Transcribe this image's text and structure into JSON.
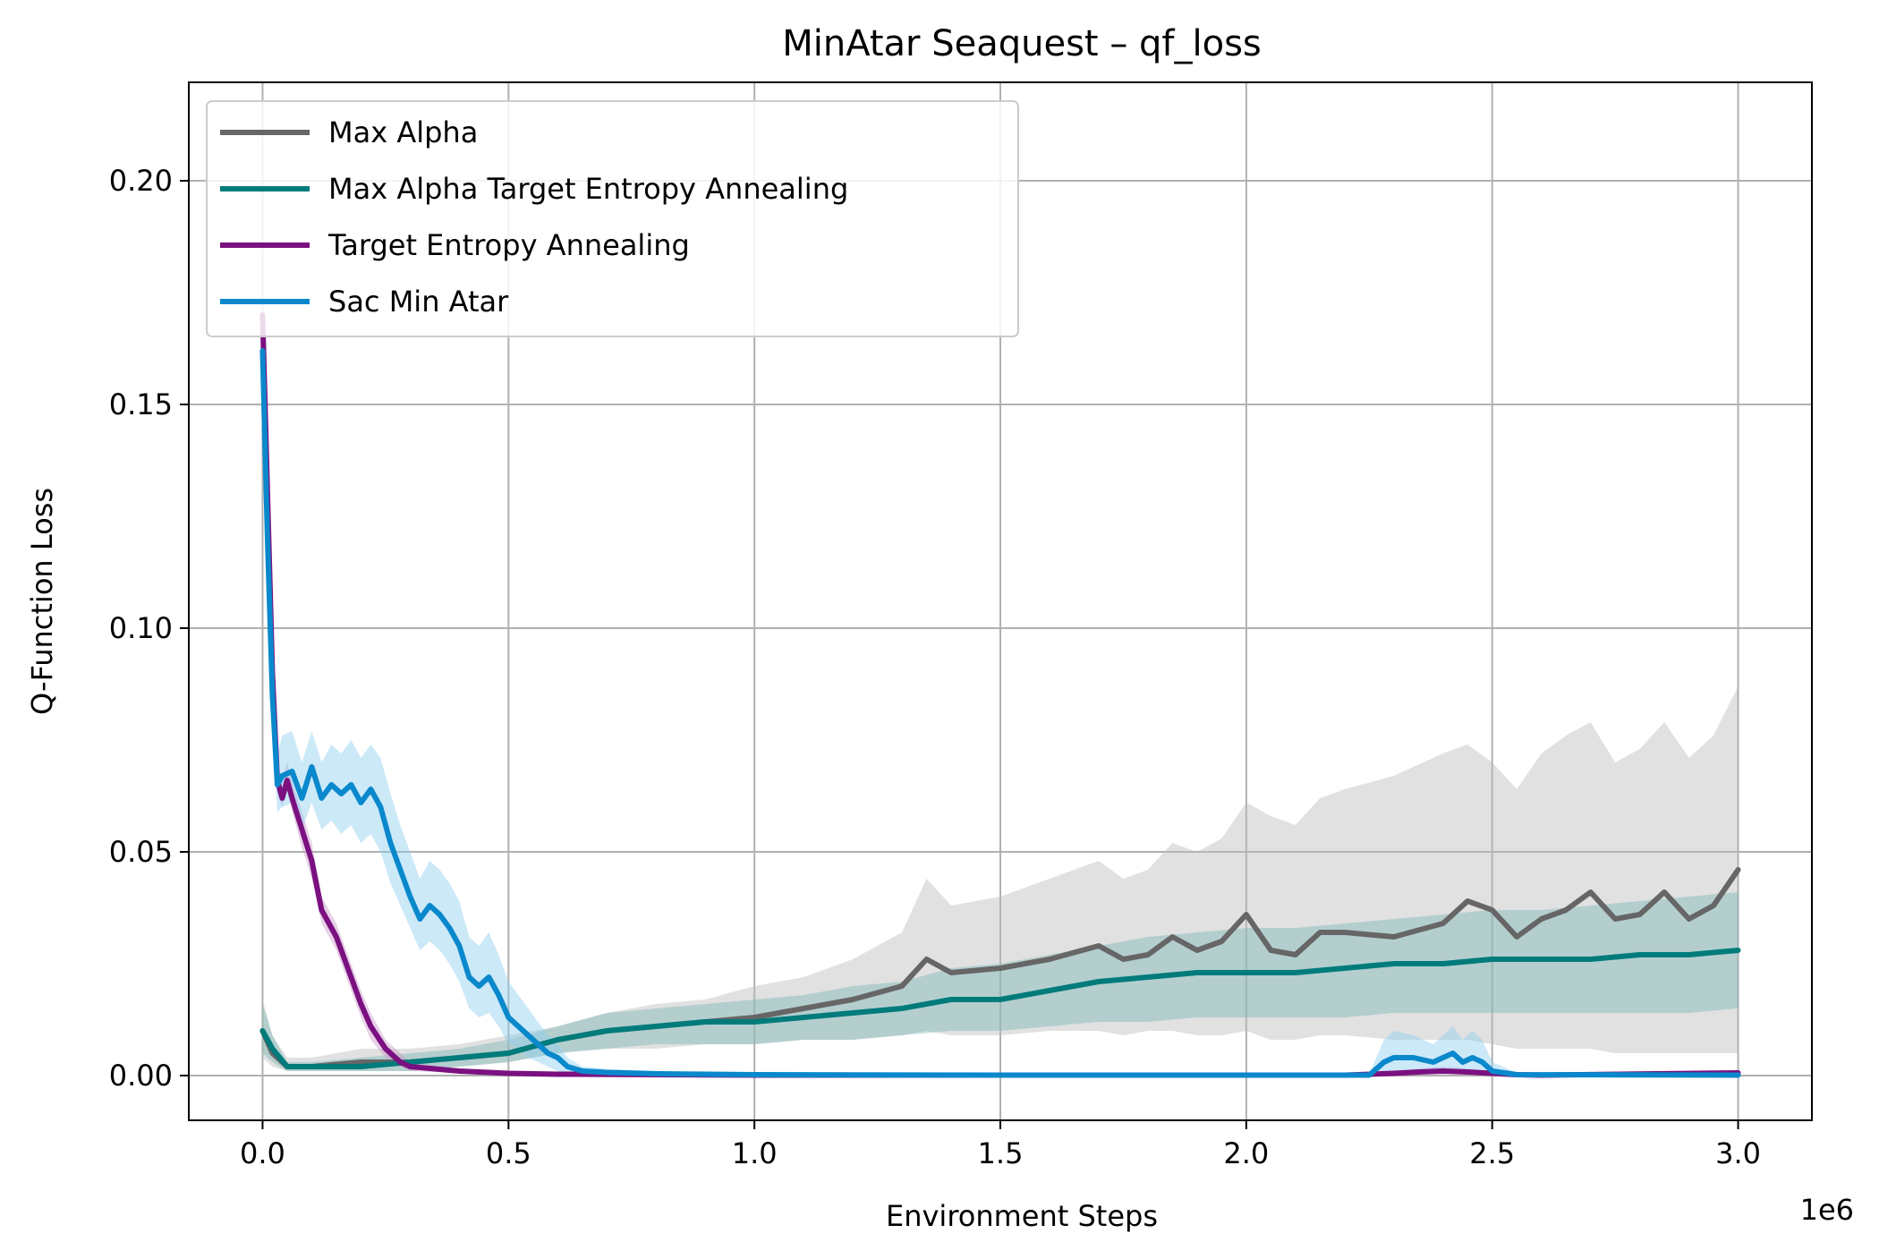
{
  "chart_data": {
    "type": "line",
    "title": "MinAtar Seaquest – qf_loss",
    "xlabel": "Environment Steps",
    "ylabel": "Q-Function Loss",
    "x_multiplier_label": "1e6",
    "xlim": [
      -0.15,
      3.15
    ],
    "ylim": [
      -0.01,
      0.222
    ],
    "x_ticks": [
      0.0,
      0.5,
      1.0,
      1.5,
      2.0,
      2.5,
      3.0
    ],
    "x_tick_labels": [
      "0.0",
      "0.5",
      "1.0",
      "1.5",
      "2.0",
      "2.5",
      "3.0"
    ],
    "y_ticks": [
      0.0,
      0.05,
      0.1,
      0.15,
      0.2
    ],
    "y_tick_labels": [
      "0.00",
      "0.05",
      "0.10",
      "0.15",
      "0.20"
    ],
    "grid": true,
    "legend_position": "top-left",
    "series": [
      {
        "name": "Max Alpha",
        "color": "#666666",
        "band_color": "#bdbdbd",
        "x": [
          0.0,
          0.02,
          0.05,
          0.1,
          0.2,
          0.3,
          0.4,
          0.5,
          0.6,
          0.7,
          0.8,
          0.9,
          1.0,
          1.1,
          1.2,
          1.3,
          1.35,
          1.4,
          1.5,
          1.6,
          1.7,
          1.75,
          1.8,
          1.85,
          1.9,
          1.95,
          2.0,
          2.05,
          2.1,
          2.15,
          2.2,
          2.3,
          2.4,
          2.45,
          2.5,
          2.55,
          2.6,
          2.65,
          2.7,
          2.75,
          2.8,
          2.85,
          2.9,
          2.95,
          3.0
        ],
        "values": [
          0.01,
          0.005,
          0.002,
          0.002,
          0.003,
          0.003,
          0.004,
          0.005,
          0.008,
          0.01,
          0.011,
          0.012,
          0.013,
          0.015,
          0.017,
          0.02,
          0.026,
          0.023,
          0.024,
          0.026,
          0.029,
          0.026,
          0.027,
          0.031,
          0.028,
          0.03,
          0.036,
          0.028,
          0.027,
          0.032,
          0.032,
          0.031,
          0.034,
          0.039,
          0.037,
          0.031,
          0.035,
          0.037,
          0.041,
          0.035,
          0.036,
          0.041,
          0.035,
          0.038,
          0.046
        ],
        "lower": [
          0.004,
          0.002,
          0.001,
          0.001,
          0.001,
          0.001,
          0.002,
          0.003,
          0.005,
          0.006,
          0.006,
          0.007,
          0.007,
          0.008,
          0.008,
          0.009,
          0.01,
          0.009,
          0.009,
          0.01,
          0.01,
          0.009,
          0.01,
          0.01,
          0.009,
          0.009,
          0.01,
          0.008,
          0.008,
          0.009,
          0.009,
          0.008,
          0.008,
          0.008,
          0.007,
          0.006,
          0.006,
          0.006,
          0.006,
          0.005,
          0.005,
          0.005,
          0.005,
          0.005,
          0.005
        ],
        "upper": [
          0.017,
          0.009,
          0.004,
          0.004,
          0.006,
          0.006,
          0.007,
          0.009,
          0.011,
          0.014,
          0.016,
          0.017,
          0.02,
          0.022,
          0.026,
          0.032,
          0.044,
          0.038,
          0.04,
          0.044,
          0.048,
          0.044,
          0.046,
          0.052,
          0.05,
          0.053,
          0.061,
          0.058,
          0.056,
          0.062,
          0.064,
          0.067,
          0.072,
          0.074,
          0.07,
          0.064,
          0.072,
          0.076,
          0.079,
          0.07,
          0.073,
          0.079,
          0.071,
          0.076,
          0.087
        ]
      },
      {
        "name": "Max Alpha Target Entropy Annealing",
        "color": "#007b7b",
        "band_color": "#7fb8b8",
        "x": [
          0.0,
          0.02,
          0.05,
          0.1,
          0.2,
          0.3,
          0.4,
          0.5,
          0.6,
          0.7,
          0.8,
          0.9,
          1.0,
          1.1,
          1.2,
          1.3,
          1.4,
          1.5,
          1.6,
          1.7,
          1.8,
          1.9,
          2.0,
          2.1,
          2.2,
          2.3,
          2.4,
          2.5,
          2.6,
          2.7,
          2.8,
          2.9,
          3.0
        ],
        "values": [
          0.01,
          0.006,
          0.002,
          0.002,
          0.002,
          0.003,
          0.004,
          0.005,
          0.008,
          0.01,
          0.011,
          0.012,
          0.012,
          0.013,
          0.014,
          0.015,
          0.017,
          0.017,
          0.019,
          0.021,
          0.022,
          0.023,
          0.023,
          0.023,
          0.024,
          0.025,
          0.025,
          0.026,
          0.026,
          0.026,
          0.027,
          0.027,
          0.028
        ],
        "lower": [
          0.005,
          0.003,
          0.001,
          0.001,
          0.001,
          0.001,
          0.002,
          0.003,
          0.005,
          0.006,
          0.007,
          0.007,
          0.007,
          0.008,
          0.008,
          0.009,
          0.01,
          0.01,
          0.011,
          0.012,
          0.012,
          0.013,
          0.013,
          0.013,
          0.013,
          0.014,
          0.014,
          0.014,
          0.014,
          0.014,
          0.014,
          0.014,
          0.015
        ],
        "upper": [
          0.016,
          0.009,
          0.003,
          0.003,
          0.004,
          0.005,
          0.006,
          0.008,
          0.011,
          0.014,
          0.015,
          0.016,
          0.017,
          0.018,
          0.02,
          0.021,
          0.024,
          0.025,
          0.027,
          0.029,
          0.031,
          0.032,
          0.033,
          0.033,
          0.034,
          0.035,
          0.036,
          0.037,
          0.037,
          0.038,
          0.039,
          0.04,
          0.041
        ]
      },
      {
        "name": "Target Entropy Annealing",
        "color": "#7b1080",
        "band_color": "#c99ac9",
        "x": [
          0.0,
          0.01,
          0.02,
          0.03,
          0.04,
          0.05,
          0.06,
          0.08,
          0.1,
          0.12,
          0.15,
          0.18,
          0.2,
          0.22,
          0.25,
          0.28,
          0.3,
          0.35,
          0.4,
          0.5,
          0.6,
          0.8,
          1.0,
          1.5,
          2.0,
          2.2,
          2.3,
          2.35,
          2.4,
          2.45,
          2.5,
          2.55,
          2.6,
          3.0
        ],
        "values": [
          0.17,
          0.13,
          0.09,
          0.066,
          0.062,
          0.066,
          0.062,
          0.055,
          0.048,
          0.037,
          0.031,
          0.022,
          0.016,
          0.011,
          0.006,
          0.003,
          0.002,
          0.0015,
          0.001,
          0.0005,
          0.0003,
          0.0002,
          0.0001,
          0.0001,
          0.0001,
          0.0001,
          0.0005,
          0.0008,
          0.001,
          0.0008,
          0.0005,
          0.0002,
          0.0001,
          0.0006
        ],
        "lower": [
          0.16,
          0.12,
          0.085,
          0.063,
          0.06,
          0.064,
          0.059,
          0.051,
          0.044,
          0.034,
          0.028,
          0.019,
          0.013,
          0.008,
          0.004,
          0.002,
          0.001,
          0.0008,
          0.0005,
          0.0002,
          0.0001,
          0.0,
          0.0,
          0.0,
          0.0,
          0.0,
          0.0002,
          0.0003,
          0.0004,
          0.0003,
          0.0002,
          0.0,
          0.0,
          0.0002
        ],
        "upper": [
          0.175,
          0.14,
          0.095,
          0.07,
          0.066,
          0.07,
          0.066,
          0.059,
          0.052,
          0.04,
          0.034,
          0.025,
          0.019,
          0.014,
          0.008,
          0.005,
          0.003,
          0.0022,
          0.0015,
          0.0008,
          0.0005,
          0.0003,
          0.0002,
          0.0002,
          0.0002,
          0.0002,
          0.001,
          0.0015,
          0.002,
          0.0015,
          0.001,
          0.0004,
          0.0002,
          0.001
        ]
      },
      {
        "name": "Sac Min Atar",
        "color": "#0a88cc",
        "band_color": "#8ecfef",
        "x": [
          0.0,
          0.01,
          0.02,
          0.03,
          0.04,
          0.06,
          0.08,
          0.1,
          0.12,
          0.14,
          0.16,
          0.18,
          0.2,
          0.22,
          0.24,
          0.26,
          0.28,
          0.3,
          0.32,
          0.34,
          0.36,
          0.38,
          0.4,
          0.42,
          0.44,
          0.46,
          0.48,
          0.5,
          0.52,
          0.54,
          0.56,
          0.58,
          0.6,
          0.62,
          0.65,
          0.7,
          0.8,
          1.0,
          1.5,
          2.0,
          2.25,
          2.28,
          2.3,
          2.34,
          2.38,
          2.42,
          2.44,
          2.46,
          2.48,
          2.5,
          2.55,
          3.0
        ],
        "values": [
          0.162,
          0.12,
          0.085,
          0.065,
          0.067,
          0.068,
          0.062,
          0.069,
          0.062,
          0.065,
          0.063,
          0.065,
          0.061,
          0.064,
          0.06,
          0.052,
          0.046,
          0.04,
          0.035,
          0.038,
          0.036,
          0.033,
          0.029,
          0.022,
          0.02,
          0.022,
          0.018,
          0.013,
          0.011,
          0.009,
          0.007,
          0.005,
          0.004,
          0.002,
          0.001,
          0.0007,
          0.0004,
          0.0002,
          0.0001,
          0.0001,
          0.0001,
          0.003,
          0.004,
          0.004,
          0.003,
          0.005,
          0.003,
          0.004,
          0.003,
          0.001,
          0.0002,
          0.0001
        ],
        "lower": [
          0.15,
          0.108,
          0.076,
          0.059,
          0.06,
          0.061,
          0.055,
          0.061,
          0.055,
          0.057,
          0.054,
          0.056,
          0.052,
          0.054,
          0.05,
          0.043,
          0.038,
          0.033,
          0.028,
          0.03,
          0.028,
          0.025,
          0.021,
          0.015,
          0.013,
          0.014,
          0.011,
          0.007,
          0.006,
          0.004,
          0.003,
          0.002,
          0.001,
          0.0005,
          0.0002,
          0.0001,
          0.0,
          0.0,
          0.0,
          0.0,
          0.0,
          0.0005,
          0.001,
          0.0008,
          0.0005,
          0.001,
          0.0005,
          0.0008,
          0.0005,
          0.0,
          0.0,
          0.0
        ],
        "upper": [
          0.175,
          0.135,
          0.095,
          0.072,
          0.076,
          0.077,
          0.07,
          0.077,
          0.07,
          0.074,
          0.072,
          0.075,
          0.071,
          0.074,
          0.071,
          0.063,
          0.056,
          0.05,
          0.044,
          0.048,
          0.046,
          0.043,
          0.039,
          0.031,
          0.029,
          0.032,
          0.027,
          0.021,
          0.018,
          0.015,
          0.012,
          0.009,
          0.007,
          0.004,
          0.002,
          0.0015,
          0.001,
          0.0005,
          0.0002,
          0.0002,
          0.0003,
          0.008,
          0.01,
          0.009,
          0.007,
          0.011,
          0.008,
          0.01,
          0.008,
          0.003,
          0.0006,
          0.0003
        ]
      }
    ]
  }
}
